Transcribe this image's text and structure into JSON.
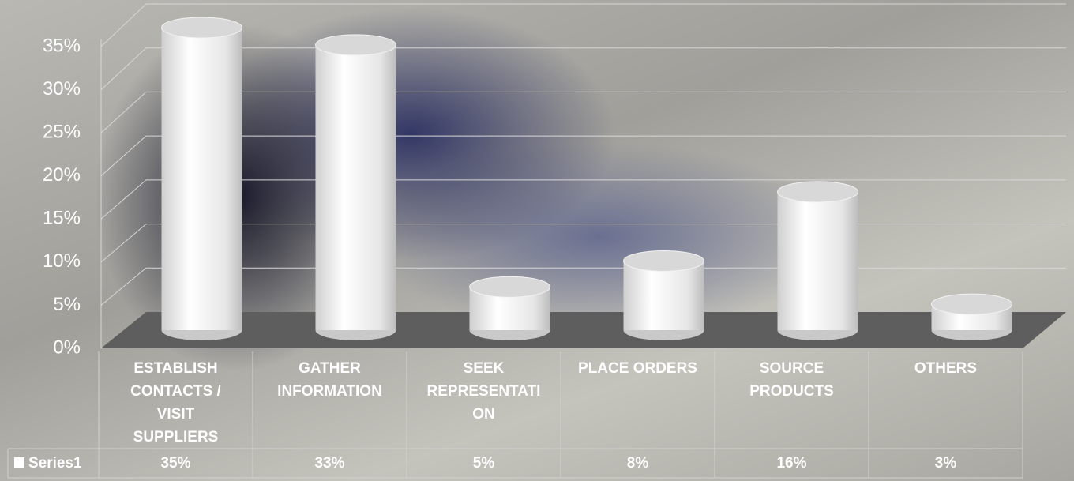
{
  "chart_data": {
    "type": "bar",
    "categories": [
      "ESTABLISH CONTACTS / VISIT SUPPLIERS",
      "GATHER INFORMATION",
      "SEEK REPRESENTATION",
      "PLACE ORDERS",
      "SOURCE PRODUCTS",
      "OTHERS"
    ],
    "series": [
      {
        "name": "Series1",
        "color": "#ffffff",
        "values": [
          35,
          33,
          5,
          8,
          16,
          3
        ],
        "value_labels": [
          "35%",
          "33%",
          "5%",
          "8%",
          "16%",
          "3%"
        ]
      }
    ],
    "ylim": [
      0,
      35
    ],
    "yticks": [
      {
        "value": 0,
        "label": "0%"
      },
      {
        "value": 5,
        "label": "5%"
      },
      {
        "value": 10,
        "label": "10%"
      },
      {
        "value": 15,
        "label": "15%"
      },
      {
        "value": 20,
        "label": "20%"
      },
      {
        "value": 25,
        "label": "25%"
      },
      {
        "value": 30,
        "label": "30%"
      },
      {
        "value": 35,
        "label": "35%"
      }
    ],
    "grid": true
  }
}
